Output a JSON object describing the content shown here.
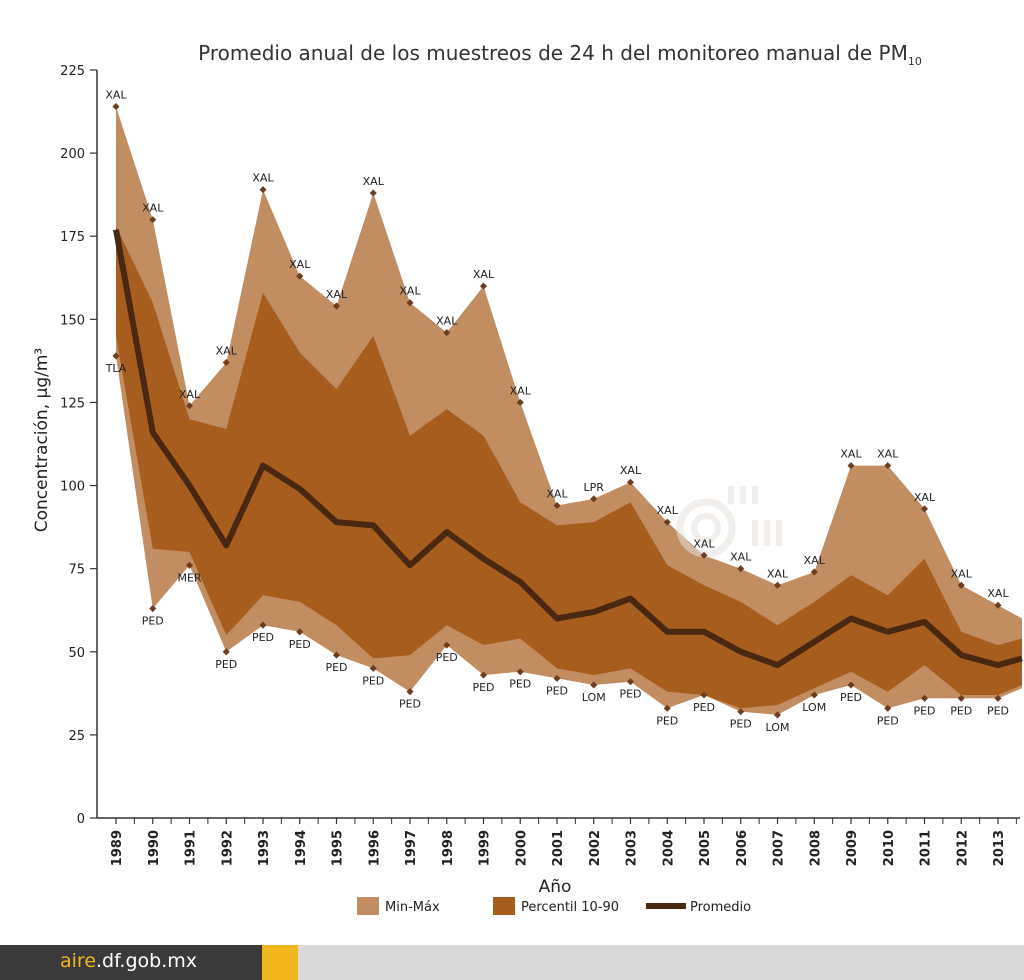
{
  "chart_data": {
    "type": "area",
    "title": "Promedio anual de los muestreos de 24 h del monitoreo manual de PM",
    "title_subscript": "10",
    "xlabel": "Año",
    "ylabel": "Concentración, µg/m³",
    "ylim": [
      0,
      225
    ],
    "yticks": [
      0,
      25,
      50,
      75,
      100,
      125,
      150,
      175,
      200,
      225
    ],
    "years": [
      "1989",
      "1990",
      "1991",
      "1992",
      "1993",
      "1994",
      "1995",
      "1996",
      "1997",
      "1998",
      "1999",
      "2000",
      "2001",
      "2002",
      "2003",
      "2004",
      "2005",
      "2006",
      "2007",
      "2008",
      "2009",
      "2010",
      "2011",
      "2012",
      "2013"
    ],
    "max": [
      214,
      180,
      124,
      137,
      189,
      163,
      154,
      188,
      155,
      146,
      160,
      125,
      94,
      96,
      101,
      89,
      79,
      75,
      70,
      74,
      106,
      106,
      93,
      70,
      64
    ],
    "min": [
      139,
      63,
      76,
      50,
      58,
      56,
      49,
      45,
      38,
      52,
      43,
      44,
      42,
      40,
      41,
      33,
      37,
      32,
      31,
      37,
      40,
      33,
      36,
      36,
      36
    ],
    "p90": [
      178,
      155,
      120,
      117,
      158,
      140,
      129,
      145,
      115,
      123,
      115,
      95,
      88,
      89,
      95,
      76,
      70,
      65,
      58,
      65,
      73,
      67,
      78,
      56,
      52
    ],
    "p10": [
      145,
      81,
      80,
      55,
      67,
      65,
      58,
      48,
      49,
      58,
      52,
      54,
      45,
      43,
      45,
      38,
      37,
      33,
      34,
      39,
      44,
      38,
      46,
      37,
      37
    ],
    "mean": [
      177,
      116,
      100,
      82,
      106,
      99,
      89,
      88,
      76,
      86,
      78,
      71,
      60,
      62,
      66,
      56,
      56,
      50,
      46,
      53,
      60,
      56,
      59,
      49,
      46
    ],
    "extra_end": {
      "max": 60,
      "min": 39,
      "p90": 54,
      "p10": 40,
      "mean": 48
    },
    "max_labels": [
      "XAL",
      "XAL",
      "XAL",
      "XAL",
      "XAL",
      "XAL",
      "XAL",
      "XAL",
      "XAL",
      "XAL",
      "XAL",
      "XAL",
      "XAL",
      "LPR",
      "XAL",
      "XAL",
      "XAL",
      "XAL",
      "XAL",
      "XAL",
      "XAL",
      "XAL",
      "XAL",
      "XAL",
      "XAL"
    ],
    "min_labels": [
      "TLA",
      "PED",
      "MER",
      "PED",
      "PED",
      "PED",
      "PED",
      "PED",
      "PED",
      "PED",
      "PED",
      "PED",
      "PED",
      "LOM",
      "PED",
      "PED",
      "PED",
      "PED",
      "LOM",
      "LOM",
      "PED",
      "PED",
      "PED",
      "PED",
      "PED"
    ],
    "legend": [
      {
        "name": "Min-Máx",
        "kind": "swatch",
        "color": "#c38d62"
      },
      {
        "name": "Percentil 10-90",
        "kind": "swatch",
        "color": "#a75d1e"
      },
      {
        "name": "Promedio",
        "kind": "line",
        "color": "#4a2710"
      }
    ],
    "colors": {
      "range": "#c38d62",
      "band": "#a75d1e",
      "mean": "#4a2710",
      "marker": "#6e3d1f",
      "axis": "#333333"
    }
  },
  "footer": {
    "url_highlight": "aire",
    "url_rest": ".df.gob.mx"
  }
}
